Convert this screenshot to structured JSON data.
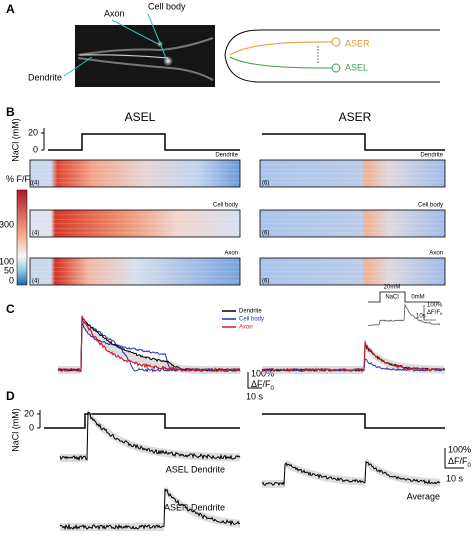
{
  "panels": {
    "A": {
      "label": "A",
      "image_labels": [
        "Axon",
        "Cell body",
        "Dendrite"
      ],
      "diagram_labels": [
        "ASER",
        "ASEL"
      ]
    },
    "B": {
      "label": "B",
      "y_axis_label": "NaCl (mM)",
      "stimulus_ticks": [
        "20",
        "0"
      ],
      "columns": [
        {
          "title": "ASEL",
          "rows": [
            {
              "label": "Dendrite",
              "n": "(4)"
            },
            {
              "label": "Cell body",
              "n": "(4)"
            },
            {
              "label": "Axon",
              "n": "(4)"
            }
          ]
        },
        {
          "title": "ASER",
          "rows": [
            {
              "label": "Dendrite",
              "n": "(6)"
            },
            {
              "label": "Cell body",
              "n": "(6)"
            },
            {
              "label": "Axon",
              "n": "(6)"
            }
          ]
        }
      ],
      "colorbar": {
        "title": {
          "main": "% F/F",
          "sub": "0"
        },
        "ticks": [
          "300",
          "100",
          "50",
          "0"
        ]
      }
    },
    "C": {
      "label": "C",
      "legend": [
        "Dendrite",
        "Cell body",
        "Axon"
      ],
      "inset": {
        "high": "20mM",
        "stimulus": "NaCl",
        "low": "0mM",
        "scale_y": "100%",
        "scale_unit": {
          "main": "ΔF/F",
          "sub": "0"
        },
        "scale_x": "10s"
      },
      "scale_y": "100%",
      "scale_unit": {
        "main": "ΔF/F",
        "sub": "0"
      },
      "scale_x": "10 s"
    },
    "D": {
      "label": "D",
      "y_axis_label": "NaCl (mM)",
      "stimulus_ticks": [
        "20",
        "0"
      ],
      "trace_labels": [
        "ASEL Dendrite",
        "ASER Dendrite",
        "Average"
      ],
      "scale_y": "100%",
      "scale_unit": {
        "main": "ΔF/F",
        "sub": "0"
      },
      "scale_x": "10 s"
    }
  }
}
